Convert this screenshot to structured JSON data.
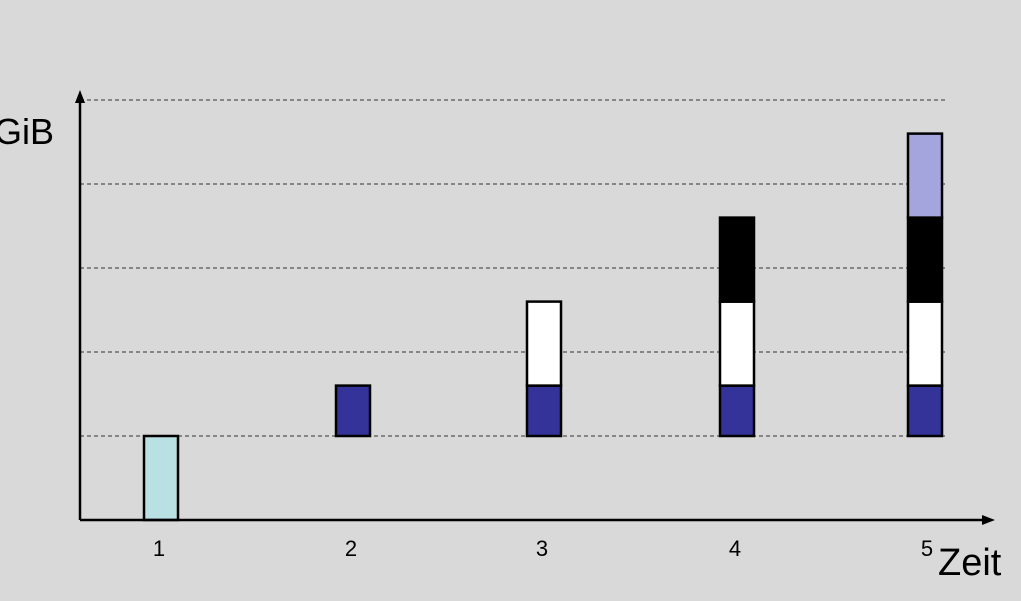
{
  "chart_data": {
    "type": "bar",
    "title": "",
    "xlabel": "Zeit",
    "ylabel": "GiB",
    "categories": [
      "1",
      "2",
      "3",
      "4",
      "5"
    ],
    "ylim": [
      0,
      4.55
    ],
    "gridlines": [
      1,
      2,
      3,
      4,
      5
    ],
    "grid_style": "dashed",
    "grid": true,
    "legend": "none",
    "stacks": [
      [
        {
          "from": 0,
          "to": 1,
          "color": "#b9e1e3"
        }
      ],
      [
        {
          "from": 1,
          "to": 1.6,
          "color": "#333399"
        }
      ],
      [
        {
          "from": 1,
          "to": 1.6,
          "color": "#333399"
        },
        {
          "from": 1.6,
          "to": 2.6,
          "color": "#ffffff"
        }
      ],
      [
        {
          "from": 1,
          "to": 1.6,
          "color": "#333399"
        },
        {
          "from": 1.6,
          "to": 2.6,
          "color": "#ffffff"
        },
        {
          "from": 2.6,
          "to": 3.6,
          "color": "#000000"
        }
      ],
      [
        {
          "from": 1,
          "to": 1.6,
          "color": "#333399"
        },
        {
          "from": 1.6,
          "to": 2.6,
          "color": "#ffffff"
        },
        {
          "from": 2.6,
          "to": 3.6,
          "color": "#000000"
        },
        {
          "from": 3.6,
          "to": 4.6,
          "color": "#a5a5de"
        }
      ]
    ]
  },
  "colors": {
    "background": "#d9d9d9",
    "axis": "#000000",
    "grid": "#555555"
  }
}
